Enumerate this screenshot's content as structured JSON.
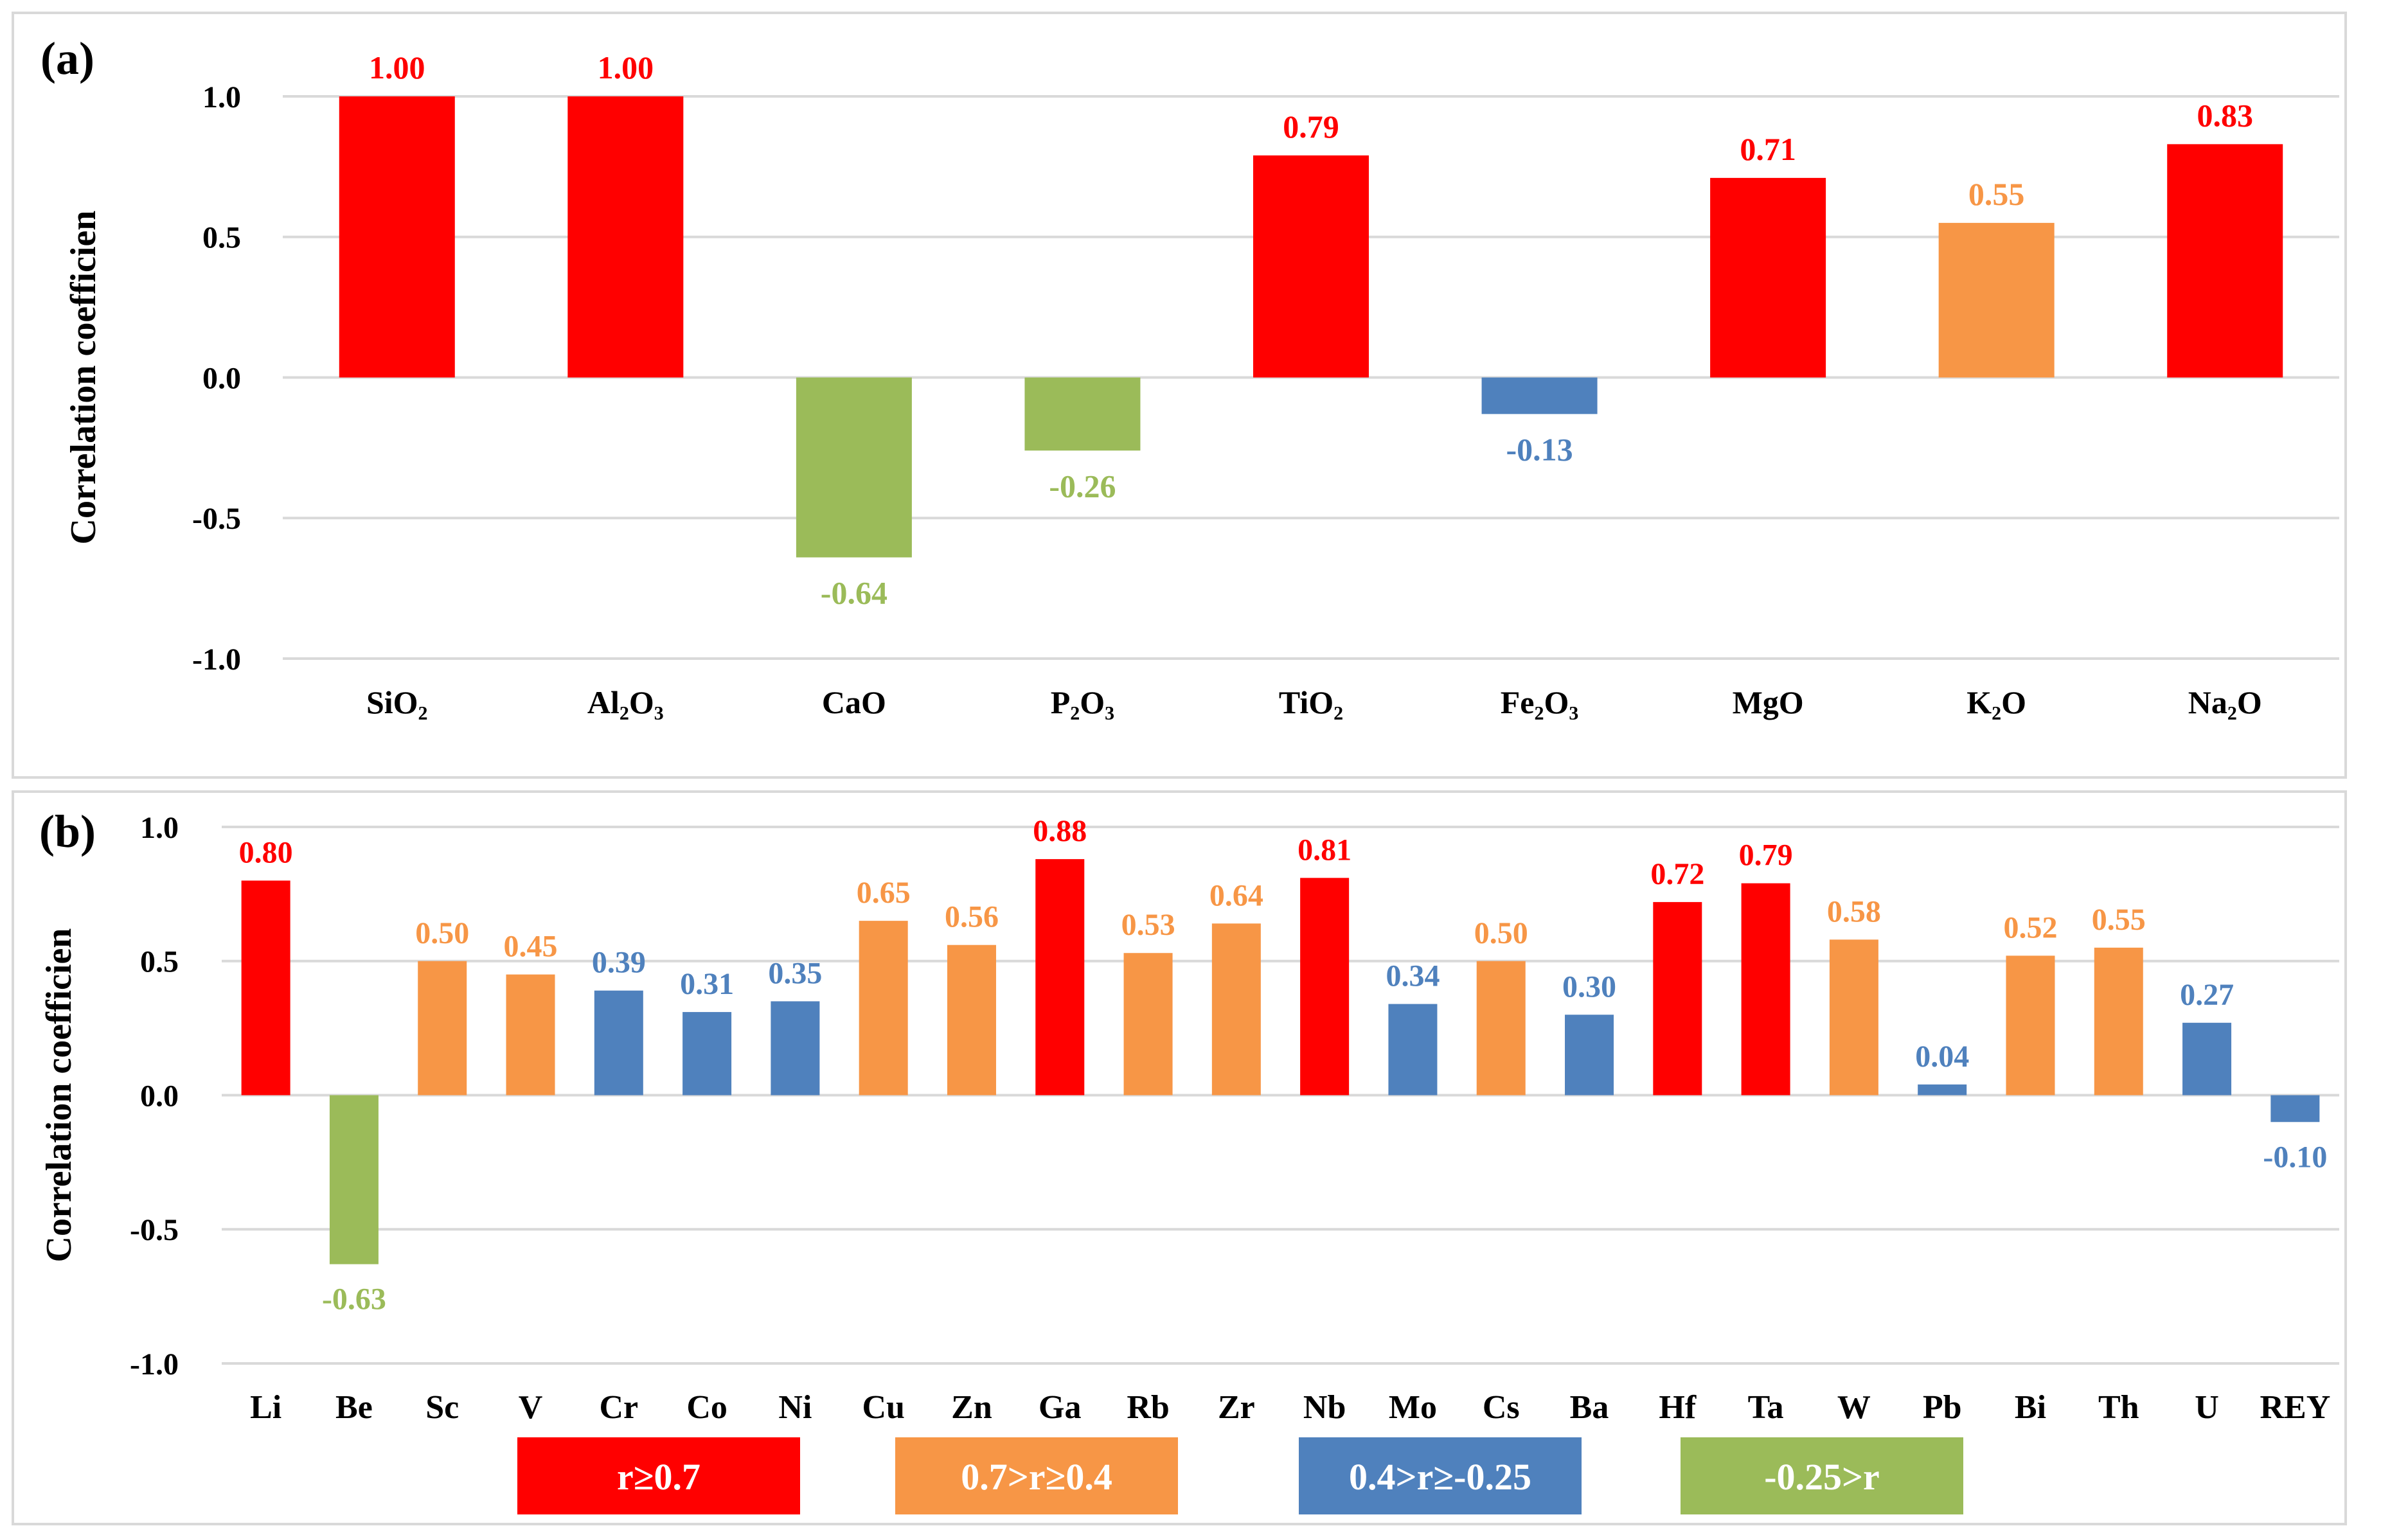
{
  "colors": {
    "red": "#FF0000",
    "orange": "#F79646",
    "blue": "#4F81BD",
    "green": "#9BBB59",
    "grid": "#D9D9D9",
    "text": "#000000"
  },
  "legend": [
    {
      "label": "r≥0.7",
      "color": "#FF0000"
    },
    {
      "label": "0.7>r≥0.4",
      "color": "#F79646"
    },
    {
      "label": "0.4>r≥-0.25",
      "color": "#4F81BD"
    },
    {
      "label": "-0.25>r",
      "color": "#9BBB59"
    }
  ],
  "chart_data": [
    {
      "type": "bar",
      "panel_label": "(a)",
      "ylabel": "Correlation coefficien",
      "ylim": [
        -1.0,
        1.0
      ],
      "yticks": [
        "1.0",
        "0.5",
        "0.0",
        "-0.5",
        "-1.0"
      ],
      "grid": true,
      "categories": [
        "SiO₂",
        "Al₂O₃",
        "CaO",
        "P₂O₃",
        "TiO₂",
        "Fe₂O₃",
        "MgO",
        "K₂O",
        "Na₂O"
      ],
      "values": [
        1.0,
        1.0,
        -0.64,
        -0.26,
        0.79,
        -0.13,
        0.71,
        0.55,
        0.83
      ],
      "labels": [
        "1.00",
        "1.00",
        "-0.64",
        "-0.26",
        "0.79",
        "-0.13",
        "0.71",
        "0.55",
        "0.83"
      ]
    },
    {
      "type": "bar",
      "panel_label": "(b)",
      "ylabel": "Correlation coefficien",
      "ylim": [
        -1.0,
        1.0
      ],
      "yticks": [
        "1.0",
        "0.5",
        "0.0",
        "-0.5",
        "-1.0"
      ],
      "grid": true,
      "categories": [
        "Li",
        "Be",
        "Sc",
        "V",
        "Cr",
        "Co",
        "Ni",
        "Cu",
        "Zn",
        "Ga",
        "Rb",
        "Zr",
        "Nb",
        "Mo",
        "Cs",
        "Ba",
        "Hf",
        "Ta",
        "W",
        "Pb",
        "Bi",
        "Th",
        "U",
        "REY"
      ],
      "values": [
        0.8,
        -0.63,
        0.5,
        0.45,
        0.39,
        0.31,
        0.35,
        0.65,
        0.56,
        0.88,
        0.53,
        0.64,
        0.81,
        0.34,
        0.5,
        0.3,
        0.72,
        0.79,
        0.58,
        0.04,
        0.52,
        0.55,
        0.27,
        -0.1
      ],
      "labels": [
        "0.80",
        "-0.63",
        "0.50",
        "0.45",
        "0.39",
        "0.31",
        "0.35",
        "0.65",
        "0.56",
        "0.88",
        "0.53",
        "0.64",
        "0.81",
        "0.34",
        "0.50",
        "0.30",
        "0.72",
        "0.79",
        "0.58",
        "0.04",
        "0.52",
        "0.55",
        "0.27",
        "-0.10"
      ]
    }
  ]
}
